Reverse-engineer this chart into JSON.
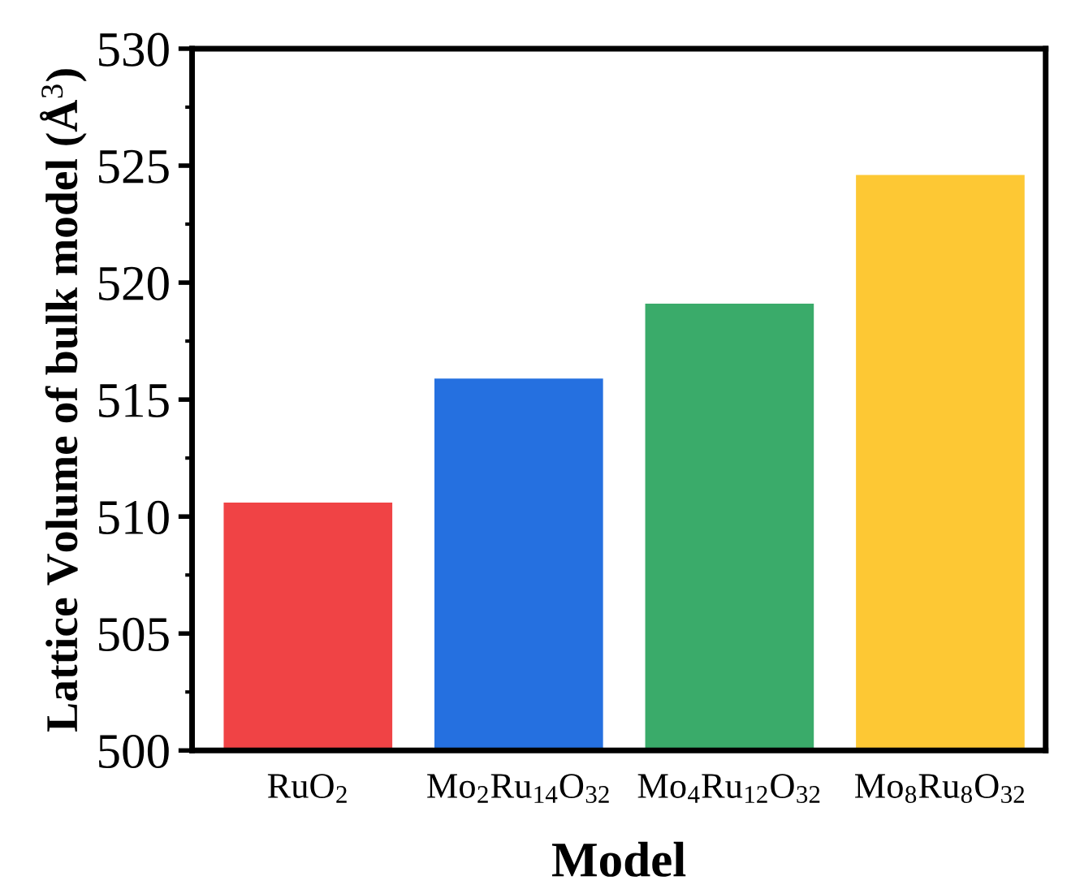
{
  "chart_data": {
    "type": "bar",
    "xlabel": "Model",
    "ylabel": "Lattice Volume of bulk model (Å$^{3}$)",
    "categories": [
      "RuO$_{2}$",
      "Mo$_{2}$Ru$_{14}$O$_{32}$",
      "Mo$_{4}$Ru$_{12}$O$_{32}$",
      "Mo$_{8}$Ru$_{8}$O$_{32}$"
    ],
    "values": [
      510.6,
      515.9,
      519.1,
      524.6
    ],
    "colors": [
      "#f04345",
      "#2570e0",
      "#3aab6a",
      "#fdc834"
    ],
    "ylim": [
      500,
      530
    ],
    "yticks": [
      500,
      505,
      510,
      515,
      520,
      525,
      530
    ],
    "grid": false,
    "legend": false
  }
}
